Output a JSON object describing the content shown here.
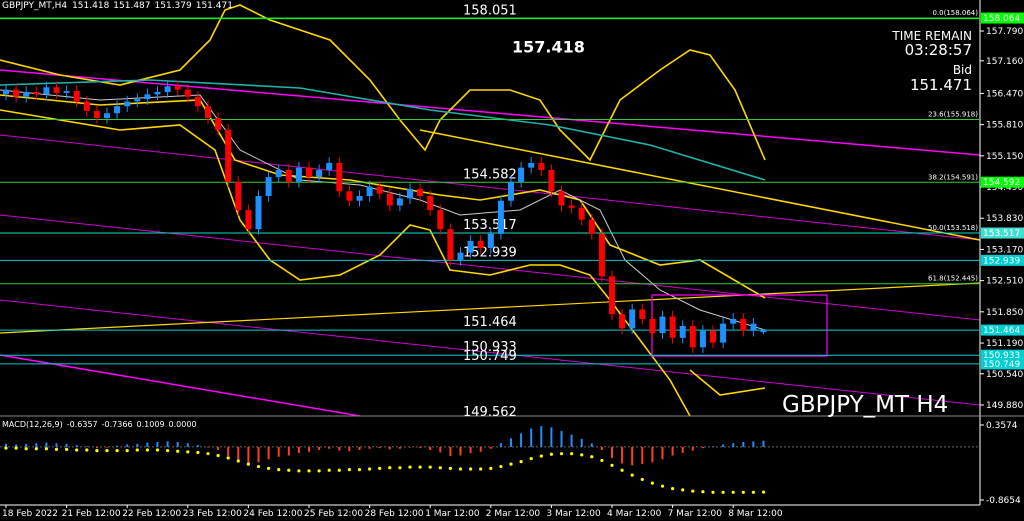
{
  "chart_data": {
    "type": "candlestick",
    "symbol": "GBPJPY_MT,H4",
    "categories": [
      "18 Feb 2022",
      null,
      null,
      null,
      null,
      null,
      "21 Feb 12:00",
      null,
      null,
      null,
      null,
      null,
      "22 Feb 12:00",
      null,
      null,
      null,
      null,
      null,
      "23 Feb 12:00",
      null,
      null,
      null,
      null,
      null,
      "24 Feb 12:00",
      null,
      null,
      null,
      null,
      null,
      "25 Feb 12:00",
      null,
      null,
      null,
      null,
      null,
      "28 Feb 12:00",
      null,
      null,
      null,
      null,
      null,
      "1 Mar 12:00",
      null,
      null,
      null,
      null,
      null,
      "2 Mar 12:00",
      null,
      null,
      null,
      null,
      null,
      "3 Mar 12:00",
      null,
      null,
      null,
      null,
      null,
      "4 Mar 12:00",
      null,
      null,
      null,
      null,
      null,
      "7 Mar 12:00",
      null,
      null,
      null,
      null,
      null,
      "8 Mar 12:00",
      null,
      null,
      null
    ],
    "open": [
      156.45,
      156.55,
      156.4,
      156.5,
      156.45,
      156.6,
      156.48,
      156.52,
      156.3,
      156.1,
      155.95,
      156.05,
      156.2,
      156.3,
      156.35,
      156.45,
      156.5,
      156.62,
      156.55,
      156.4,
      156.2,
      155.95,
      155.7,
      154.6,
      154.0,
      153.6,
      154.3,
      154.7,
      154.85,
      154.6,
      154.9,
      154.7,
      154.85,
      155.0,
      154.4,
      154.2,
      154.3,
      154.5,
      154.35,
      154.1,
      154.25,
      154.45,
      154.3,
      154.0,
      153.6,
      152.95,
      153.1,
      153.35,
      153.2,
      153.5,
      154.2,
      154.6,
      154.9,
      155.0,
      154.85,
      154.4,
      154.1,
      154.05,
      153.8,
      153.5,
      152.6,
      151.8,
      151.5,
      151.9,
      151.7,
      151.4,
      151.75,
      151.3,
      151.55,
      151.1,
      151.45,
      151.2,
      151.6,
      151.7,
      151.45,
      151.418
    ],
    "high": [
      156.67,
      156.67,
      156.62,
      156.62,
      156.72,
      156.72,
      156.64,
      156.64,
      156.42,
      156.22,
      156.17,
      156.32,
      156.42,
      156.47,
      156.57,
      156.62,
      156.74,
      156.74,
      156.67,
      156.52,
      156.32,
      156.07,
      155.82,
      154.72,
      154.12,
      154.42,
      154.82,
      154.97,
      154.97,
      155.02,
      155.02,
      154.97,
      155.12,
      155.12,
      154.52,
      154.42,
      154.62,
      154.62,
      154.47,
      154.37,
      154.57,
      154.57,
      154.42,
      154.12,
      153.72,
      153.22,
      153.47,
      153.47,
      153.62,
      154.32,
      154.72,
      155.02,
      155.12,
      155.12,
      154.97,
      154.52,
      154.22,
      154.17,
      153.92,
      153.62,
      152.72,
      151.92,
      152.02,
      152.02,
      151.82,
      151.87,
      151.87,
      151.67,
      151.67,
      151.57,
      151.57,
      151.72,
      151.82,
      151.82,
      151.72,
      151.487
    ],
    "low": [
      156.33,
      156.28,
      156.28,
      156.33,
      156.33,
      156.36,
      156.36,
      156.18,
      155.98,
      155.83,
      155.83,
      155.93,
      156.08,
      156.18,
      156.23,
      156.33,
      156.38,
      156.43,
      156.28,
      156.08,
      155.83,
      155.58,
      154.48,
      153.88,
      153.48,
      153.48,
      154.18,
      154.58,
      154.48,
      154.48,
      154.58,
      154.58,
      154.73,
      154.28,
      154.08,
      154.08,
      154.18,
      154.23,
      153.98,
      153.98,
      154.13,
      154.18,
      153.88,
      153.48,
      152.83,
      152.83,
      152.98,
      153.08,
      153.08,
      153.38,
      154.08,
      154.48,
      154.78,
      154.73,
      154.28,
      153.98,
      153.93,
      153.68,
      153.38,
      152.48,
      151.68,
      151.38,
      151.38,
      151.58,
      151.28,
      151.28,
      151.18,
      151.18,
      150.98,
      150.98,
      151.08,
      151.08,
      151.48,
      151.33,
      151.33,
      151.379
    ],
    "close": [
      156.55,
      156.4,
      156.5,
      156.45,
      156.6,
      156.48,
      156.52,
      156.3,
      156.1,
      155.95,
      156.05,
      156.2,
      156.3,
      156.35,
      156.45,
      156.5,
      156.62,
      156.55,
      156.4,
      156.2,
      155.95,
      155.7,
      154.6,
      154.0,
      153.6,
      154.3,
      154.7,
      154.85,
      154.6,
      154.9,
      154.7,
      154.85,
      155.0,
      154.4,
      154.2,
      154.3,
      154.5,
      154.35,
      154.1,
      154.25,
      154.45,
      154.3,
      154.0,
      153.6,
      152.95,
      153.1,
      153.35,
      153.2,
      153.5,
      154.2,
      154.6,
      154.9,
      155.0,
      154.85,
      154.4,
      154.1,
      154.05,
      153.8,
      153.5,
      152.6,
      151.8,
      151.5,
      151.9,
      151.7,
      151.4,
      151.75,
      151.3,
      151.55,
      151.1,
      151.45,
      151.2,
      151.6,
      151.7,
      151.45,
      151.6,
      151.471
    ],
    "up_color": "#1e90ff",
    "down_color": "#ff0000",
    "ylim": [
      149.668,
      158.446
    ],
    "yticks": [
      {
        "value": 157.79,
        "label": "157.790"
      },
      {
        "value": 157.16,
        "label": "157.160"
      },
      {
        "value": 156.47,
        "label": "156.470"
      },
      {
        "value": 155.81,
        "label": "155.810"
      },
      {
        "value": 155.15,
        "label": "155.150"
      },
      {
        "value": 154.49,
        "label": "154.490"
      },
      {
        "value": 153.83,
        "label": "153.830"
      },
      {
        "value": 153.17,
        "label": "153.170"
      },
      {
        "value": 152.51,
        "label": "152.510"
      },
      {
        "value": 151.85,
        "label": "151.850"
      },
      {
        "value": 151.19,
        "label": "151.190"
      },
      {
        "value": 150.54,
        "label": "150.540"
      },
      {
        "value": 149.88,
        "label": "149.880"
      }
    ],
    "levels": [
      {
        "value": 158.051,
        "line": true,
        "color": "#00ff00",
        "label_color": "#ffffff"
      },
      {
        "value": 157.418,
        "line": false,
        "color": "#f5c67a",
        "label_color": "#f5c67a",
        "bold": true
      },
      {
        "value": 154.582,
        "line": false,
        "color": "#00ff00",
        "label_color": "#ffffff"
      },
      {
        "value": 153.517,
        "line": true,
        "color": "#00e0c0",
        "label_color": "#ffffff"
      },
      {
        "value": 152.939,
        "line": true,
        "color": "#00ced1",
        "label_color": "#ffffff"
      },
      {
        "value": 151.464,
        "line": true,
        "color": "#00ced1",
        "label_color": "#ffffff"
      },
      {
        "value": 150.933,
        "line": true,
        "color": "#00ced1",
        "label_color": "#ffffff"
      },
      {
        "value": 150.749,
        "line": true,
        "color": "#00ced1",
        "label_color": "#ffffff"
      },
      {
        "value": 149.562,
        "line": false,
        "color": "#ff00ff",
        "label_color": "#ffffff"
      }
    ],
    "fib_levels": [
      {
        "value": 158.064,
        "label": "0.0(158.064)"
      },
      {
        "value": 155.918,
        "label": "23.6(155.918)"
      },
      {
        "value": 154.591,
        "label": "38.2(154.591)"
      },
      {
        "value": 153.518,
        "label": "50.0(153.518)"
      },
      {
        "value": 152.445,
        "label": "61.8(152.445)"
      }
    ],
    "fib_color": "#32cd32",
    "price_tags": [
      {
        "value": 158.064,
        "color": "#00ff00"
      },
      {
        "value": 154.592,
        "color": "#00ff00"
      },
      {
        "value": 153.517,
        "color": "#40e0d0"
      },
      {
        "value": 152.939,
        "color": "#00ced1"
      },
      {
        "value": 151.464,
        "color": "#00ced1"
      },
      {
        "value": 150.933,
        "color": "#00ced1"
      },
      {
        "value": 150.749,
        "color": "#00ced1"
      }
    ],
    "timer": {
      "title": "TIME REMAIN",
      "time": "03:28:57",
      "bid_label": "Bid"
    },
    "watermark": "GBPJPY_MT H4",
    "macd": {
      "title": "MACD(12,26,9)",
      "main": -0.6357,
      "extra": {
        "value": 0,
        "label": "0.0000"
      },
      "histogram": [
        0.05,
        0.04,
        0.05,
        0.06,
        0.07,
        0.06,
        0.05,
        0.03,
        0.01,
        -0.02,
        -0.01,
        0.02,
        0.04,
        0.05,
        0.07,
        0.08,
        0.09,
        0.08,
        0.06,
        0.03,
        -0.01,
        -0.05,
        -0.15,
        -0.22,
        -0.28,
        -0.25,
        -0.2,
        -0.16,
        -0.14,
        -0.1,
        -0.08,
        -0.05,
        -0.03,
        -0.06,
        -0.07,
        -0.05,
        -0.03,
        -0.02,
        -0.04,
        -0.03,
        -0.01,
        -0.02,
        -0.05,
        -0.09,
        -0.15,
        -0.14,
        -0.1,
        -0.08,
        -0.03,
        0.06,
        0.14,
        0.22,
        0.3,
        0.34,
        0.32,
        0.26,
        0.2,
        0.13,
        0.06,
        -0.05,
        -0.18,
        -0.27,
        -0.3,
        -0.28,
        -0.25,
        -0.2,
        -0.14,
        -0.1,
        -0.06,
        -0.02,
        0.01,
        0.04,
        0.06,
        0.08,
        0.09,
        0.1009
      ],
      "signal": [
        -0.02,
        -0.02,
        -0.03,
        -0.03,
        -0.03,
        -0.04,
        -0.04,
        -0.05,
        -0.05,
        -0.06,
        -0.06,
        -0.06,
        -0.06,
        -0.05,
        -0.05,
        -0.05,
        -0.06,
        -0.07,
        -0.08,
        -0.09,
        -0.11,
        -0.14,
        -0.18,
        -0.23,
        -0.28,
        -0.32,
        -0.35,
        -0.37,
        -0.38,
        -0.39,
        -0.39,
        -0.39,
        -0.38,
        -0.38,
        -0.37,
        -0.37,
        -0.36,
        -0.35,
        -0.34,
        -0.34,
        -0.33,
        -0.33,
        -0.33,
        -0.34,
        -0.35,
        -0.36,
        -0.36,
        -0.36,
        -0.35,
        -0.32,
        -0.28,
        -0.24,
        -0.19,
        -0.15,
        -0.12,
        -0.11,
        -0.11,
        -0.13,
        -0.16,
        -0.22,
        -0.3,
        -0.38,
        -0.46,
        -0.53,
        -0.59,
        -0.64,
        -0.68,
        -0.7,
        -0.72,
        -0.73,
        -0.74,
        -0.74,
        -0.74,
        -0.74,
        -0.74,
        -0.7366
      ],
      "hist_up_color": "#1e90ff",
      "hist_down_color": "#ff4020",
      "signal_color": "#ffff00",
      "ylim": [
        -0.947,
        0.4716
      ],
      "yticks": [
        0.3574,
        -0.8654
      ]
    }
  }
}
